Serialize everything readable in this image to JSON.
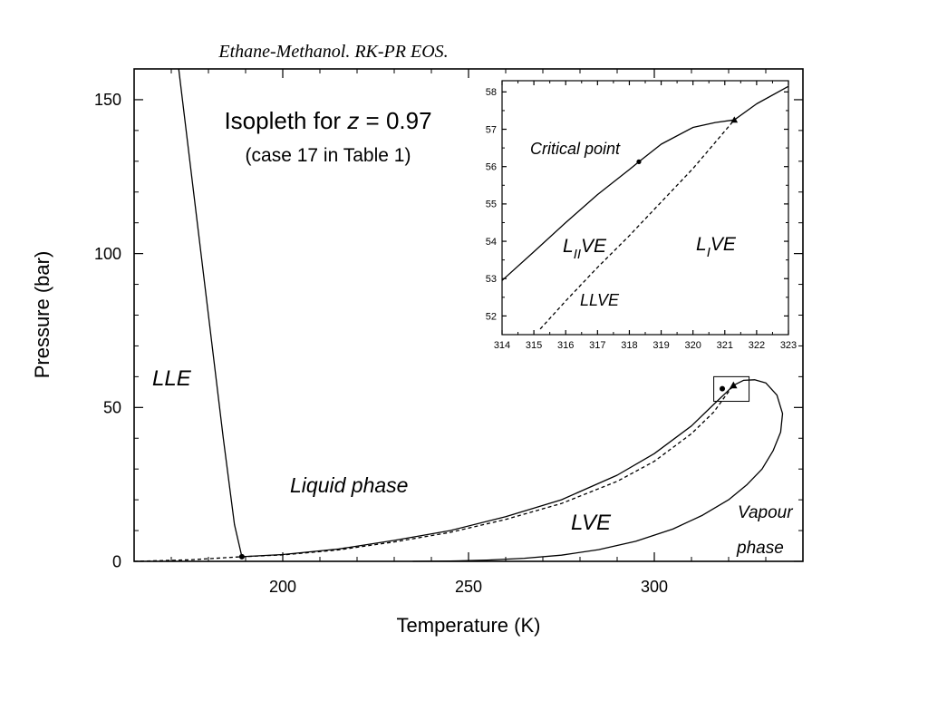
{
  "slide_title": "Ethane-Methanol. RK-PR EOS.",
  "colors": {
    "title": "#0000cc",
    "line": "#000000",
    "background": "#ffffff"
  },
  "chart_data": [
    {
      "type": "line",
      "xlabel": "Temperature (K)",
      "ylabel": "Pressure (bar)",
      "xlim": [
        160,
        340
      ],
      "ylim": [
        0,
        160
      ],
      "xticks": [
        200,
        250,
        300
      ],
      "yticks": [
        0,
        50,
        100,
        150
      ],
      "grid": false,
      "annotation_title": "Isopleth for ",
      "annotation_var": "z",
      "annotation_value": " = 0.97",
      "annotation_subtitle": "(case 17 in Table 1)",
      "region_labels": {
        "lle": "LLE",
        "liquid": "Liquid phase",
        "lve": "LVE",
        "vapour_line1": "Vapour",
        "vapour_line2": "phase"
      },
      "series": [
        {
          "style": "solid",
          "x": [
            172,
            175,
            178,
            181,
            184,
            187,
            189
          ],
          "y": [
            160,
            130,
            100,
            70,
            40,
            12,
            1.5
          ]
        },
        {
          "style": "solid",
          "x": [
            189,
            200,
            215,
            230,
            245,
            260,
            275,
            290,
            300,
            310,
            316,
            319.5,
            321.3,
            324,
            327,
            330,
            333,
            334.5,
            334,
            332,
            329,
            325,
            320,
            313,
            305,
            295,
            285,
            275,
            265,
            255,
            245,
            235
          ],
          "y": [
            1.5,
            2.2,
            4,
            6.8,
            10,
            14.5,
            20,
            28,
            35,
            44,
            51,
            55,
            57.2,
            58.8,
            59,
            58,
            54,
            48,
            42,
            36,
            30,
            25,
            20,
            15,
            10.5,
            6.5,
            3.8,
            2,
            1,
            0.4,
            0.1,
            0
          ]
        },
        {
          "style": "dashed",
          "x": [
            160,
            175,
            189,
            200,
            215,
            230,
            245,
            260,
            275,
            290,
            300,
            310,
            316,
            319,
            321.3
          ],
          "y": [
            0,
            0.5,
            1.5,
            2.1,
            3.7,
            6.3,
            9.4,
            13.6,
            18.8,
            26,
            32.5,
            41.5,
            48.5,
            53.5,
            57.2
          ]
        }
      ],
      "markers": [
        {
          "shape": "circle",
          "x": 189,
          "y": 1.5
        },
        {
          "shape": "circle",
          "x": 318.3,
          "y": 56.1
        },
        {
          "shape": "triangle",
          "x": 321.3,
          "y": 57.2
        }
      ],
      "zoom_box": {
        "x": [
          316,
          325.5
        ],
        "y": [
          52,
          60
        ]
      }
    },
    {
      "type": "line",
      "title": "",
      "xlim": [
        314,
        323
      ],
      "ylim": [
        51.5,
        58.3
      ],
      "xticks": [
        314,
        315,
        316,
        317,
        318,
        319,
        320,
        321,
        322,
        323
      ],
      "yticks": [
        52,
        53,
        54,
        55,
        56,
        57,
        58
      ],
      "grid": false,
      "labels": {
        "critical_point": "Critical point",
        "llve": "LLVE",
        "l2ve_base": "L",
        "l2ve_sub": "II",
        "l2ve_tail": "VE",
        "l1ve_base": "L",
        "l1ve_sub": "I",
        "l1ve_tail": "VE"
      },
      "series": [
        {
          "style": "solid",
          "x": [
            314,
            315,
            316,
            317,
            318,
            318.3,
            319,
            320,
            320.7,
            321.3,
            322,
            323
          ],
          "y": [
            52.95,
            53.72,
            54.5,
            55.25,
            55.92,
            56.13,
            56.6,
            57.05,
            57.18,
            57.25,
            57.68,
            58.15
          ]
        },
        {
          "style": "dashed",
          "x": [
            315.2,
            316,
            317,
            318,
            319,
            320,
            321.3
          ],
          "y": [
            51.65,
            52.4,
            53.3,
            54.15,
            55.05,
            55.95,
            57.25
          ]
        }
      ],
      "markers": [
        {
          "shape": "circle",
          "x": 318.3,
          "y": 56.13
        },
        {
          "shape": "triangle",
          "x": 321.3,
          "y": 57.25
        }
      ]
    }
  ]
}
